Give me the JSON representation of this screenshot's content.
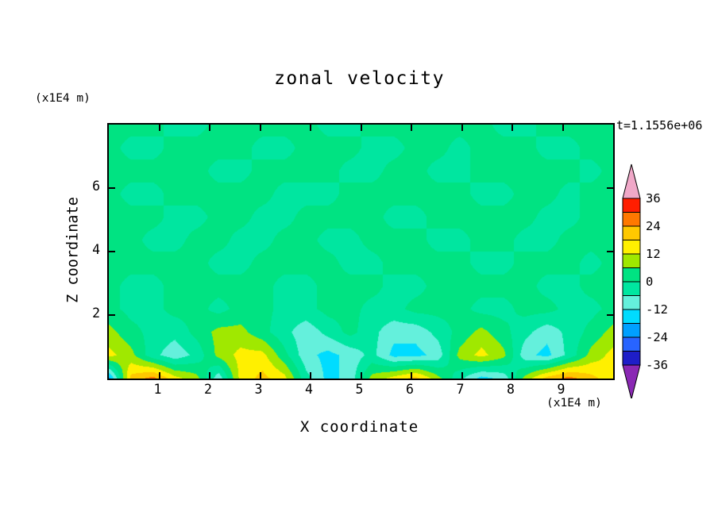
{
  "title": "zonal velocity",
  "time_label": "t=1.1556e+06",
  "axes": {
    "x_label": "X coordinate",
    "x_unit": "(x1E4 m)",
    "y_label": "Z coordinate",
    "y_unit": "(x1E4 m)",
    "x_ticks": [
      1,
      2,
      3,
      4,
      5,
      6,
      7,
      8,
      9
    ],
    "y_ticks": [
      2,
      4,
      6
    ],
    "x_range": [
      0,
      10
    ],
    "y_range": [
      0,
      8
    ]
  },
  "colorbar": {
    "tick_labels": [
      "36",
      "24",
      "12",
      "0",
      "-12",
      "-24",
      "-36"
    ],
    "levels": [
      -36,
      -30,
      -24,
      -18,
      -12,
      -6,
      0,
      6,
      12,
      18,
      24,
      30,
      36
    ],
    "colors_low_to_high": [
      "#1E1EC8",
      "#2864FF",
      "#00A0FF",
      "#00DCFF",
      "#64F0DC",
      "#00E6A0",
      "#00E382",
      "#A0E800",
      "#FFF000",
      "#FFC800",
      "#FF7800",
      "#FF1E00"
    ],
    "under_color": "#8A28B4",
    "over_color": "#F0A8C8"
  },
  "chart_data": {
    "type": "heatmap",
    "title": "zonal velocity",
    "xlabel": "X coordinate (x1E4 m)",
    "ylabel": "Z coordinate (x1E4 m)",
    "annotation": "t=1.1556e+06",
    "x_range": [
      0,
      10
    ],
    "z_range": [
      0,
      8
    ],
    "contour_interval": 6,
    "levels": [
      -36,
      -30,
      -24,
      -18,
      -12,
      -6,
      0,
      6,
      12,
      18,
      24,
      30,
      36
    ],
    "grid": {
      "rows_top_to_bottom": true,
      "nx": 24,
      "nz": 12,
      "values": [
        [
          2,
          2,
          2,
          -2,
          -2,
          2,
          2,
          2,
          2,
          2,
          -2,
          -2,
          2,
          2,
          2,
          2,
          2,
          2,
          -2,
          -2,
          2,
          2,
          2,
          2
        ],
        [
          2,
          -2,
          -2,
          2,
          2,
          2,
          2,
          -2,
          -2,
          2,
          2,
          2,
          -2,
          -2,
          2,
          2,
          -2,
          2,
          2,
          2,
          -2,
          -2,
          2,
          2
        ],
        [
          2,
          2,
          2,
          2,
          2,
          -2,
          -2,
          2,
          2,
          2,
          2,
          -2,
          -2,
          2,
          2,
          -2,
          -2,
          2,
          2,
          2,
          2,
          2,
          -2,
          2
        ],
        [
          2,
          -2,
          -2,
          2,
          2,
          2,
          2,
          2,
          -2,
          -2,
          -2,
          2,
          2,
          2,
          2,
          2,
          2,
          -2,
          -2,
          2,
          2,
          -2,
          2,
          2
        ],
        [
          2,
          2,
          2,
          -2,
          -2,
          2,
          2,
          -2,
          -2,
          2,
          2,
          2,
          2,
          -2,
          -2,
          2,
          2,
          2,
          2,
          2,
          -2,
          -2,
          2,
          2
        ],
        [
          2,
          2,
          -2,
          -2,
          2,
          2,
          -2,
          -2,
          2,
          2,
          -2,
          -2,
          2,
          2,
          2,
          -2,
          -2,
          2,
          2,
          -2,
          -2,
          2,
          2,
          2
        ],
        [
          2,
          2,
          2,
          2,
          2,
          -2,
          -2,
          2,
          2,
          2,
          2,
          -2,
          -2,
          2,
          2,
          2,
          2,
          -2,
          -2,
          2,
          2,
          2,
          -2,
          2
        ],
        [
          2,
          -2,
          -2,
          2,
          2,
          2,
          2,
          2,
          -2,
          -2,
          2,
          2,
          2,
          -2,
          -2,
          2,
          2,
          2,
          2,
          2,
          -2,
          -2,
          2,
          2
        ],
        [
          2,
          -2,
          -2,
          2,
          2,
          -2,
          2,
          2,
          -2,
          -2,
          2,
          2,
          -2,
          -2,
          2,
          2,
          2,
          -2,
          -2,
          2,
          2,
          -2,
          -2,
          2
        ],
        [
          8,
          2,
          -2,
          -4,
          2,
          8,
          8,
          2,
          -4,
          -10,
          -4,
          2,
          -4,
          -10,
          -10,
          -4,
          2,
          8,
          2,
          -4,
          -10,
          -4,
          2,
          8
        ],
        [
          14,
          8,
          -4,
          -10,
          -4,
          8,
          14,
          14,
          2,
          -10,
          -14,
          -10,
          -4,
          -14,
          -14,
          -10,
          8,
          14,
          8,
          -10,
          -14,
          -4,
          8,
          14
        ],
        [
          -20,
          20,
          26,
          14,
          8,
          -10,
          14,
          20,
          14,
          -4,
          -14,
          -10,
          8,
          14,
          20,
          8,
          -4,
          -14,
          -10,
          8,
          20,
          26,
          20,
          14
        ]
      ]
    }
  }
}
